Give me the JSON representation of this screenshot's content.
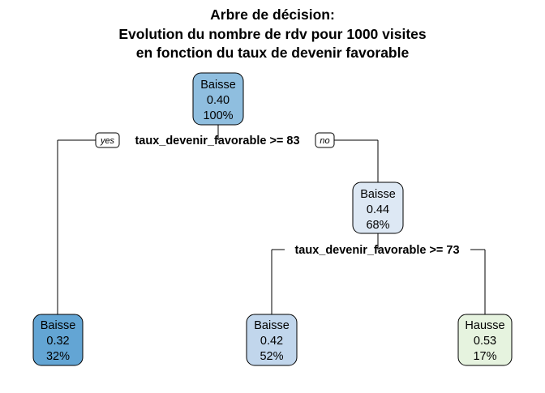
{
  "title": {
    "line1": "Arbre de décision:",
    "line2": "Evolution du nombre de rdv pour 1000 visites",
    "line3": "en fonction du taux de devenir favorable"
  },
  "nodes": {
    "root": {
      "label": "Baisse",
      "value": "0.40",
      "percent": "100%",
      "color": "#8fbedf"
    },
    "right": {
      "label": "Baisse",
      "value": "0.44",
      "percent": "68%",
      "color": "#dde8f4"
    },
    "leaf1": {
      "label": "Baisse",
      "value": "0.32",
      "percent": "32%",
      "color": "#63a5d4"
    },
    "leaf2": {
      "label": "Baisse",
      "value": "0.42",
      "percent": "52%",
      "color": "#c1d6ec"
    },
    "leaf3": {
      "label": "Hausse",
      "value": "0.53",
      "percent": "17%",
      "color": "#e6f3df"
    }
  },
  "splits": {
    "split1": {
      "rule": "taux_devenir_favorable >= 83",
      "yes": "yes",
      "no": "no"
    },
    "split2": {
      "rule": "taux_devenir_favorable >= 73"
    }
  }
}
